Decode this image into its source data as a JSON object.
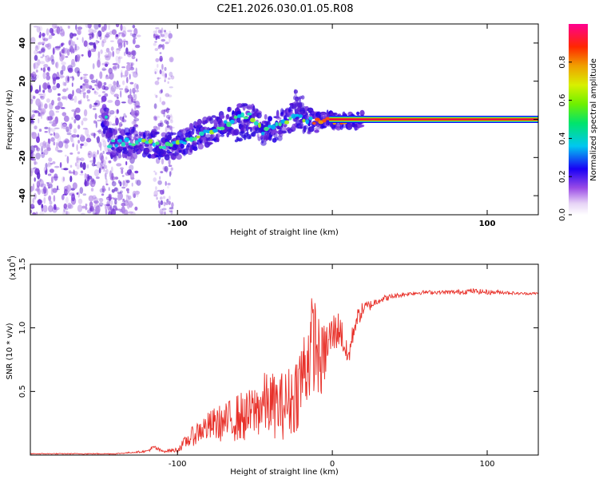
{
  "title": "C2E1.2026.030.01.05.R08",
  "chart_data": [
    {
      "type": "heatmap",
      "name": "spectrogram",
      "xlabel": "Height of straight line (km)",
      "ylabel": "Frequency (Hz)",
      "xlim": [
        -195,
        133
      ],
      "ylim": [
        -50,
        50
      ],
      "xticks": [
        -100,
        0,
        100
      ],
      "xtick_labels": [
        "-100",
        "",
        "100"
      ],
      "yticks": [
        -40,
        -20,
        0,
        20,
        40
      ],
      "ytick_labels": [
        "-40",
        "-20",
        "0",
        "20",
        "40"
      ],
      "ridge": {
        "x": [
          -145,
          -135,
          -125,
          -115,
          -105,
          -95,
          -85,
          -75,
          -65,
          -55,
          -50,
          -45,
          -40,
          -30,
          -25,
          -20,
          -15,
          -10,
          -5,
          0,
          10,
          20,
          50,
          133
        ],
        "y": [
          -13,
          -12,
          -12,
          -13,
          -14,
          -12,
          -8,
          -5,
          -1,
          2,
          0,
          -6,
          -5,
          -2,
          2,
          1,
          0,
          -1,
          0,
          -1,
          -1,
          0,
          0,
          0
        ]
      },
      "colorbar": {
        "label": "Normalized spectral amplitude",
        "range": [
          0.0,
          1.0
        ],
        "ticks": [
          0.0,
          0.2,
          0.4,
          0.6,
          0.8
        ],
        "tick_labels": [
          "0.0",
          "0.2",
          "0.4",
          "0.6",
          "0.8"
        ]
      }
    },
    {
      "type": "line",
      "name": "snr",
      "xlabel": "Height of straight line (km)",
      "ylabel": "SNR (10 * v/v)",
      "multiplier_label": "(x10",
      "multiplier_exp": "4",
      "xlim": [
        -195,
        133
      ],
      "ylim": [
        0,
        1.5
      ],
      "xticks": [
        -100,
        0,
        100
      ],
      "xtick_labels": [
        "-100",
        "0",
        "100"
      ],
      "yticks": [
        0.5,
        1.0,
        1.5
      ],
      "ytick_labels": [
        "0.5",
        "1.0",
        "1.5"
      ],
      "series": [
        {
          "name": "SNR",
          "color": "#e8312a",
          "x": [
            -195,
            -140,
            -130,
            -120,
            -115,
            -110,
            -100,
            -95,
            -90,
            -85,
            -80,
            -75,
            -70,
            -65,
            -60,
            -55,
            -50,
            -45,
            -40,
            -35,
            -30,
            -25,
            -20,
            -15,
            -12,
            -10,
            -8,
            -5,
            -2,
            0,
            5,
            10,
            15,
            20,
            25,
            30,
            40,
            50,
            60,
            70,
            80,
            90,
            100,
            110,
            120,
            133
          ],
          "y": [
            0.01,
            0.01,
            0.02,
            0.03,
            0.06,
            0.03,
            0.04,
            0.1,
            0.15,
            0.2,
            0.22,
            0.25,
            0.25,
            0.28,
            0.3,
            0.3,
            0.35,
            0.4,
            0.4,
            0.38,
            0.4,
            0.45,
            0.6,
            0.8,
            0.9,
            0.85,
            0.7,
            0.8,
            0.9,
            0.95,
            1.0,
            0.75,
            1.05,
            1.15,
            1.18,
            1.22,
            1.25,
            1.27,
            1.28,
            1.28,
            1.28,
            1.29,
            1.28,
            1.28,
            1.27,
            1.27
          ],
          "noise": [
            0.003,
            0.004,
            0.005,
            0.008,
            0.02,
            0.01,
            0.02,
            0.05,
            0.08,
            0.1,
            0.12,
            0.14,
            0.15,
            0.17,
            0.2,
            0.2,
            0.22,
            0.25,
            0.26,
            0.26,
            0.28,
            0.3,
            0.35,
            0.4,
            0.4,
            0.38,
            0.3,
            0.25,
            0.2,
            0.18,
            0.14,
            0.1,
            0.08,
            0.06,
            0.04,
            0.03,
            0.02,
            0.015,
            0.015,
            0.015,
            0.02,
            0.02,
            0.02,
            0.015,
            0.01,
            0.01
          ]
        }
      ]
    }
  ]
}
